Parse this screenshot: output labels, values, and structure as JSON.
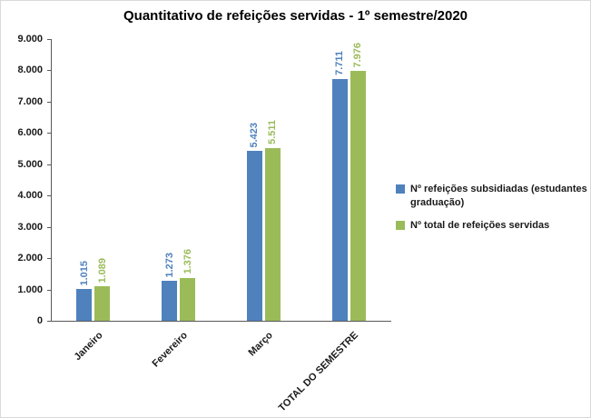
{
  "chart_data": {
    "type": "bar",
    "title": "Quantitativo de refeições servidas - 1º semestre/2020",
    "categories": [
      "Janeiro",
      "Fevereiro",
      "Março",
      "TOTAL DO SEMESTRE"
    ],
    "series": [
      {
        "name": "Nº refeições subsidiadas (estudantes graduação)",
        "color": "#4F81BD",
        "values": [
          1015,
          1273,
          5423,
          7711
        ],
        "value_labels": [
          "1.015",
          "1.273",
          "5.423",
          "7.711"
        ]
      },
      {
        "name": "Nº total de refeições servidas",
        "color": "#9BBB59",
        "values": [
          1089,
          1376,
          5511,
          7976
        ],
        "value_labels": [
          "1.089",
          "1.376",
          "5.511",
          "7.976"
        ]
      }
    ],
    "ylim": [
      0,
      9000
    ],
    "ytick_step": 1000,
    "ytick_labels": [
      "0",
      "1.000",
      "2.000",
      "3.000",
      "4.000",
      "5.000",
      "6.000",
      "7.000",
      "8.000",
      "9.000"
    ],
    "grid": false,
    "legend_position": "right",
    "xlabel": "",
    "ylabel": ""
  }
}
